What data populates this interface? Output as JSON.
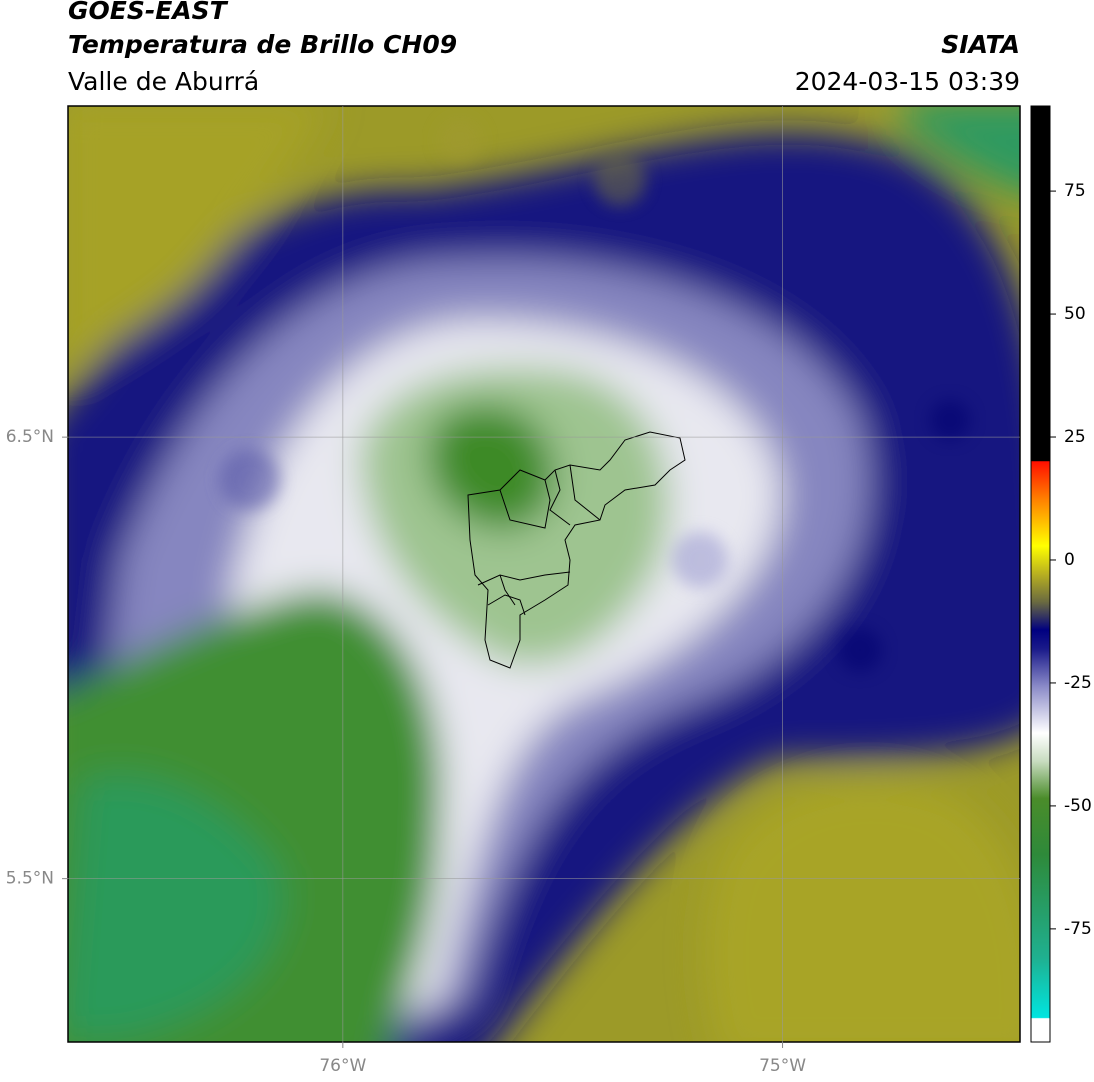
{
  "header": {
    "title": "GOES-EAST",
    "subtitle": "Temperatura de Brillo CH09",
    "region": "Valle de Aburrá",
    "source": "SIATA",
    "datetime": "2024-03-15 03:39"
  },
  "map": {
    "lonlim": [
      -76.625,
      -74.46
    ],
    "latlim": [
      5.13,
      7.25
    ],
    "lon_ticks": [
      {
        "value": -76,
        "label": "76°W"
      },
      {
        "value": -75,
        "label": "75°W"
      }
    ],
    "lat_ticks": [
      {
        "value": 6.5,
        "label": "6.5°N"
      },
      {
        "value": 5.5,
        "label": "5.5°N"
      }
    ]
  },
  "colorbar": {
    "lim": [
      -98,
      92.3
    ],
    "ticks": [
      75,
      50,
      25,
      0,
      -25,
      -50,
      -75
    ]
  }
}
